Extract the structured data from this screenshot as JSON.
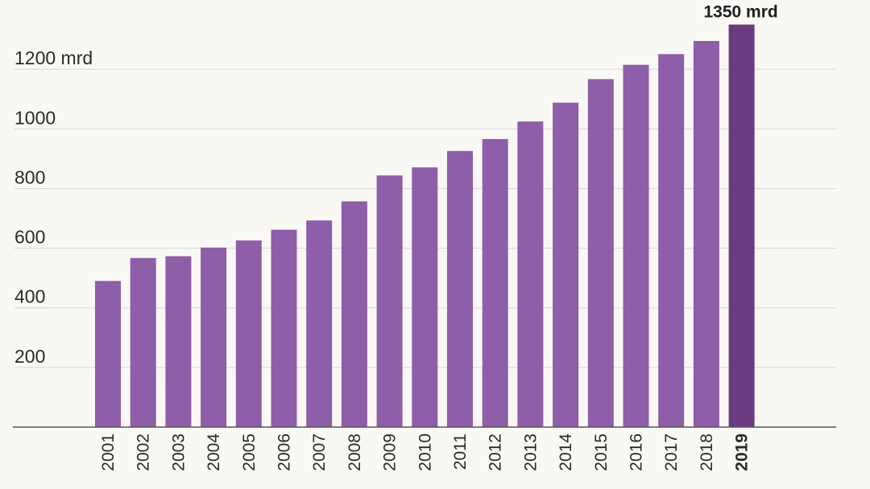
{
  "chart_data": {
    "type": "bar",
    "categories": [
      "2001",
      "2002",
      "2003",
      "2004",
      "2005",
      "2006",
      "2007",
      "2008",
      "2009",
      "2010",
      "2011",
      "2012",
      "2013",
      "2014",
      "2015",
      "2016",
      "2017",
      "2018",
      "2019"
    ],
    "values": [
      490,
      567,
      573,
      602,
      626,
      662,
      693,
      757,
      844,
      871,
      926,
      966,
      1025,
      1088,
      1167,
      1215,
      1251,
      1295,
      1350
    ],
    "y_ticks": [
      "200",
      "400",
      "600",
      "800",
      "1000",
      "1200 mrd"
    ],
    "y_tick_values": [
      200,
      400,
      600,
      800,
      1000,
      1200
    ],
    "ylim": [
      0,
      1350
    ],
    "grid": true,
    "highlight_category": "2019",
    "annotation": "1350 mrd",
    "colors": {
      "bar": "#8e5ea8",
      "highlight": "#6a3b7f",
      "grid": "#d6d6d6",
      "axis": "#555555"
    }
  }
}
